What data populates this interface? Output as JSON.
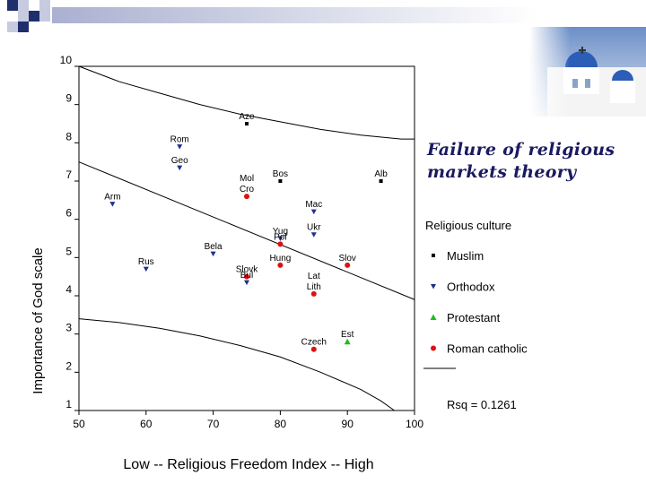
{
  "chart_data": {
    "type": "scatter",
    "xlabel": "Low -- Religious Freedom Index -- High",
    "ylabel": "Importance of God scale",
    "xlim": [
      50,
      100
    ],
    "ylim": [
      1,
      10
    ],
    "x_ticks": [
      "50",
      "60",
      "70",
      "80",
      "90",
      "100"
    ],
    "y_ticks": [
      "1",
      "2",
      "3",
      "4",
      "5",
      "6",
      "7",
      "8",
      "9",
      "10"
    ],
    "legend_title": "Religious culture",
    "legend_position": "right",
    "series": [
      {
        "name": "Muslim",
        "marker": "square",
        "color": "#000000",
        "points": [
          {
            "label": "Aze",
            "x": 75,
            "y": 8.5
          },
          {
            "label": "Bos",
            "x": 80,
            "y": 7.0
          },
          {
            "label": "Alb",
            "x": 95,
            "y": 7.0
          }
        ]
      },
      {
        "name": "Orthodox",
        "marker": "triangle-down",
        "color": "#1f2f8c",
        "points": [
          {
            "label": "Rom",
            "x": 65,
            "y": 7.9
          },
          {
            "label": "Geo",
            "x": 65,
            "y": 7.35
          },
          {
            "label": "Arm",
            "x": 55,
            "y": 6.4
          },
          {
            "label": "Mac",
            "x": 85,
            "y": 6.2
          },
          {
            "label": "Ukr",
            "x": 85,
            "y": 5.6
          },
          {
            "label": "Yug",
            "x": 80,
            "y": 5.5
          },
          {
            "label": "Bela",
            "x": 70,
            "y": 5.1
          },
          {
            "label": "Rus",
            "x": 60,
            "y": 4.7
          },
          {
            "label": "Bul",
            "x": 75,
            "y": 4.35
          }
        ]
      },
      {
        "name": "Protestant",
        "marker": "triangle-up",
        "color": "#22bb22",
        "points": [
          {
            "label": "Est",
            "x": 90,
            "y": 2.8
          }
        ]
      },
      {
        "name": "Roman catholic",
        "marker": "circle",
        "color": "#dd1111",
        "points": [
          {
            "label": "Mol Cro",
            "x": 75,
            "y": 6.6
          },
          {
            "label": "Pol",
            "x": 80,
            "y": 5.35
          },
          {
            "label": "Hung",
            "x": 80,
            "y": 4.8
          },
          {
            "label": "Slov",
            "x": 90,
            "y": 4.8
          },
          {
            "label": "Slovk",
            "x": 75,
            "y": 4.5
          },
          {
            "label": "Lat Lith",
            "x": 85,
            "y": 4.05
          },
          {
            "label": "Czech",
            "x": 85,
            "y": 2.6
          }
        ]
      }
    ],
    "fit_lines": [
      {
        "x": [
          50,
          100
        ],
        "y": [
          7.5,
          3.9
        ]
      }
    ],
    "confidence_bands": [
      {
        "x": [
          50,
          56,
          62,
          68,
          74,
          80,
          86,
          92,
          98,
          100
        ],
        "y": [
          10.0,
          9.6,
          9.3,
          9.0,
          8.75,
          8.55,
          8.35,
          8.2,
          8.1,
          8.1
        ]
      },
      {
        "x": [
          50,
          56,
          62,
          68,
          74,
          80,
          86,
          92,
          95,
          97
        ],
        "y": [
          3.4,
          3.3,
          3.15,
          2.95,
          2.7,
          2.4,
          2.0,
          1.55,
          1.25,
          1.0
        ]
      }
    ],
    "annotation": "Rsq = 0.1261"
  },
  "overlay": {
    "title": "Failure of religious markets theory",
    "colors": {
      "strip_dark": "#1f2f6b",
      "strip_light": "#c7cbe0",
      "title_text": "#1a1a60"
    },
    "photo_icon": "whitewashed-church-photo"
  }
}
